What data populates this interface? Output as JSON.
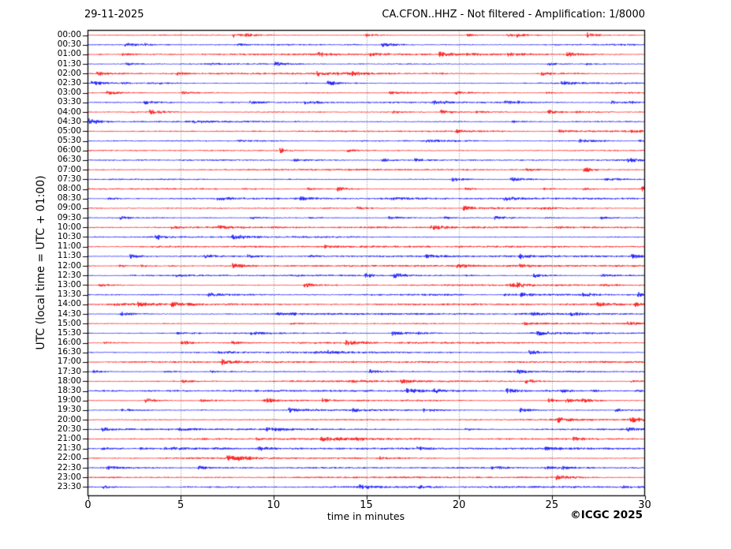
{
  "header": {
    "date_title": "29-11-2025",
    "station_title": "CA.CFON..HHZ - Not filtered - Amplification: 1/8000"
  },
  "axes": {
    "x_label": "time in minutes",
    "y_label": "UTC (local time = UTC + 01:00)"
  },
  "footer": {
    "copyright": "©ICGC 2025"
  },
  "chart_data": {
    "type": "line",
    "subtype": "helicorder_day_plot",
    "date": "29-11-2025",
    "station": "CA.CFON..HHZ",
    "filter": "Not filtered",
    "amplification": "1/8000",
    "title_left": "29-11-2025",
    "title_right": "CA.CFON..HHZ - Not filtered - Amplification: 1/8000",
    "xlabel": "time in minutes",
    "ylabel": "UTC (local time = UTC + 01:00)",
    "xlim": [
      0,
      30
    ],
    "xticks": [
      0,
      5,
      10,
      15,
      20,
      25,
      30
    ],
    "x_gridlines": [
      5,
      10,
      15,
      20,
      25
    ],
    "grid_style": "dotted",
    "minutes_per_row": 30,
    "rows_count": 48,
    "trace_colors": {
      "hour": "#ff0000",
      "half_hour": "#0000ff"
    },
    "grid_color": "#777777",
    "axis_color": "#000000",
    "background": "#ffffff",
    "trace_description": "continuous low-amplitude background seismic noise on every 30-minute line; small sporadic noise bursts, no large events",
    "rows": [
      {
        "label": "00:00",
        "color": "#ff0000"
      },
      {
        "label": "00:30",
        "color": "#0000ff"
      },
      {
        "label": "01:00",
        "color": "#ff0000"
      },
      {
        "label": "01:30",
        "color": "#0000ff"
      },
      {
        "label": "02:00",
        "color": "#ff0000"
      },
      {
        "label": "02:30",
        "color": "#0000ff"
      },
      {
        "label": "03:00",
        "color": "#ff0000"
      },
      {
        "label": "03:30",
        "color": "#0000ff"
      },
      {
        "label": "04:00",
        "color": "#ff0000"
      },
      {
        "label": "04:30",
        "color": "#0000ff"
      },
      {
        "label": "05:00",
        "color": "#ff0000"
      },
      {
        "label": "05:30",
        "color": "#0000ff"
      },
      {
        "label": "06:00",
        "color": "#ff0000"
      },
      {
        "label": "06:30",
        "color": "#0000ff"
      },
      {
        "label": "07:00",
        "color": "#ff0000"
      },
      {
        "label": "07:30",
        "color": "#0000ff"
      },
      {
        "label": "08:00",
        "color": "#ff0000"
      },
      {
        "label": "08:30",
        "color": "#0000ff"
      },
      {
        "label": "09:00",
        "color": "#ff0000"
      },
      {
        "label": "09:30",
        "color": "#0000ff"
      },
      {
        "label": "10:00",
        "color": "#ff0000"
      },
      {
        "label": "10:30",
        "color": "#0000ff"
      },
      {
        "label": "11:00",
        "color": "#ff0000"
      },
      {
        "label": "11:30",
        "color": "#0000ff"
      },
      {
        "label": "12:00",
        "color": "#ff0000"
      },
      {
        "label": "12:30",
        "color": "#0000ff"
      },
      {
        "label": "13:00",
        "color": "#ff0000"
      },
      {
        "label": "13:30",
        "color": "#0000ff"
      },
      {
        "label": "14:00",
        "color": "#ff0000"
      },
      {
        "label": "14:30",
        "color": "#0000ff"
      },
      {
        "label": "15:00",
        "color": "#ff0000"
      },
      {
        "label": "15:30",
        "color": "#0000ff"
      },
      {
        "label": "16:00",
        "color": "#ff0000"
      },
      {
        "label": "16:30",
        "color": "#0000ff"
      },
      {
        "label": "17:00",
        "color": "#ff0000"
      },
      {
        "label": "17:30",
        "color": "#0000ff"
      },
      {
        "label": "18:00",
        "color": "#ff0000"
      },
      {
        "label": "18:30",
        "color": "#0000ff"
      },
      {
        "label": "19:00",
        "color": "#ff0000"
      },
      {
        "label": "19:30",
        "color": "#0000ff"
      },
      {
        "label": "20:00",
        "color": "#ff0000"
      },
      {
        "label": "20:30",
        "color": "#0000ff"
      },
      {
        "label": "21:00",
        "color": "#ff0000"
      },
      {
        "label": "21:30",
        "color": "#0000ff"
      },
      {
        "label": "22:00",
        "color": "#ff0000"
      },
      {
        "label": "22:30",
        "color": "#0000ff"
      },
      {
        "label": "23:00",
        "color": "#ff0000"
      },
      {
        "label": "23:30",
        "color": "#0000ff"
      }
    ]
  }
}
